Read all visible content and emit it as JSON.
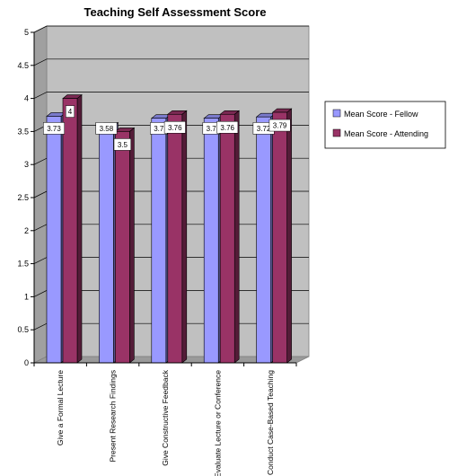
{
  "chart_data": {
    "type": "bar",
    "title": "Teaching Self Assessment Score",
    "categories": [
      "Give a Formal Lecture",
      "Present Research Findings",
      "Give Constructive Feedback",
      "Evaluate Lecture or Conference",
      "Conduct Case-Based Teaching"
    ],
    "series": [
      {
        "name": "Mean Score - Fellow",
        "values": [
          3.73,
          3.58,
          3.7,
          3.7,
          3.72
        ],
        "labels": [
          "3.73",
          "3.58",
          "3.7",
          "3.7",
          "3.72"
        ],
        "color": "#9999ff"
      },
      {
        "name": "Mean Score - Attending",
        "values": [
          4,
          3.5,
          3.76,
          3.76,
          3.79
        ],
        "labels": [
          "4",
          "3.5",
          "3.76",
          "3.76",
          "3.79"
        ],
        "color": "#993366"
      }
    ],
    "ylim": [
      0,
      5
    ],
    "yticks": [
      "0",
      "0.5",
      "1",
      "1.5",
      "2",
      "2.5",
      "3",
      "3.5",
      "4",
      "4.5",
      "5"
    ],
    "grid": true,
    "legend_position": "right",
    "xlabel": "",
    "ylabel": ""
  }
}
